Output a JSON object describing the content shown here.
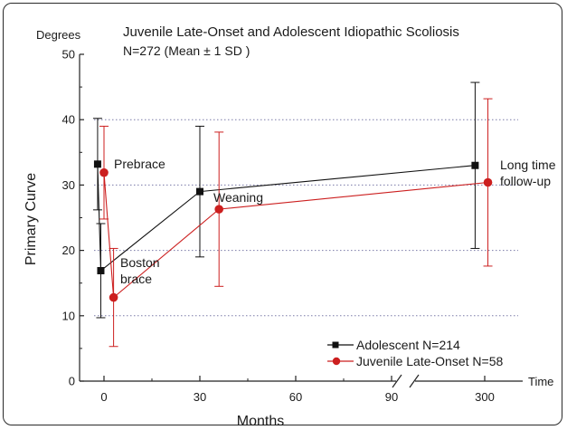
{
  "chart_data": {
    "type": "line",
    "title": "Juvenile Late-Onset and Adolescent Idiopathic Scoliosis",
    "subtitle": "N=272 (Mean ± 1 SD )",
    "ylabel": "Primary Curve",
    "y_unit_label": "Degrees",
    "xlabel": "Months",
    "x_unit_label": "Time",
    "ylim": [
      0,
      50
    ],
    "y_ticks": [
      "0",
      "10",
      "20",
      "30",
      "40",
      "50"
    ],
    "x_ticks": [
      "0",
      "30",
      "60",
      "90",
      "300"
    ],
    "x_axis_break": "between 90 and 300",
    "grid": "horizontal dotted at 10, 20, 30, 40",
    "legend_position": "bottom-right",
    "series": [
      {
        "name": "Adolescent  N=214",
        "color": "#111111",
        "marker": "square",
        "points": [
          {
            "x": -2,
            "y": 33.2,
            "sd": 7.0
          },
          {
            "x": -1,
            "y": 16.9,
            "sd": 7.2
          },
          {
            "x": 30,
            "y": 29.0,
            "sd": 10.0
          },
          {
            "x": 297,
            "y": 33.0,
            "sd": 12.7
          }
        ]
      },
      {
        "name": "Juvenile Late-Onset  N=58",
        "color": "#cc1f1f",
        "marker": "circle",
        "points": [
          {
            "x": 0,
            "y": 31.9,
            "sd": 7.1
          },
          {
            "x": 3,
            "y": 12.8,
            "sd": 7.5
          },
          {
            "x": 36,
            "y": 26.3,
            "sd": 11.8
          },
          {
            "x": 301,
            "y": 30.4,
            "sd": 12.8
          }
        ]
      }
    ],
    "annotations": [
      {
        "text": "Prebrace"
      },
      {
        "text": "Boston"
      },
      {
        "text": "brace"
      },
      {
        "text": "Weaning"
      },
      {
        "text": "Long time"
      },
      {
        "text": "follow-up"
      }
    ]
  }
}
